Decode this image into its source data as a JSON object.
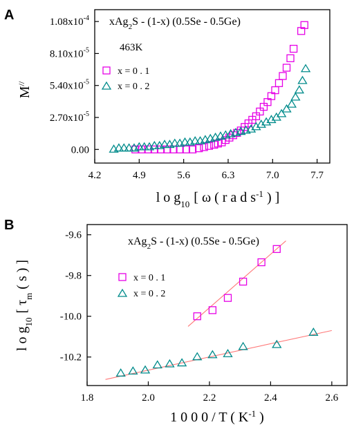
{
  "colors": {
    "x01": "#e600e6",
    "x02": "#008b8b",
    "fit": "#ff7777",
    "axis": "#000000"
  },
  "chart_data": [
    {
      "panel": "A",
      "type": "scatter",
      "title": "xAg2S - (1-x) (0.5Se - 0.5Ge)",
      "temperature_label": "463K",
      "xlabel_parts": {
        "main": "l o g",
        "sub": "10",
        "mid": "[ ω ( r a d  s",
        "sup": "-1",
        "end": ") ]"
      },
      "ylabel_parts": {
        "main": "M",
        "sup": "//"
      },
      "xlim": [
        4.2,
        7.9
      ],
      "ylim": [
        -1.15e-05,
        0.000118
      ],
      "xticks": [
        4.2,
        4.9,
        5.6,
        6.3,
        7.0,
        7.7
      ],
      "xtick_labels": [
        "4.2",
        "4.9",
        "5.6",
        "6.3",
        "7.0",
        "7.7"
      ],
      "yticks": [
        0,
        2.7e-05,
        5.4e-05,
        8.1e-05,
        0.000108
      ],
      "ytick_labels": [
        {
          "base": "0.00",
          "exp": ""
        },
        {
          "base": "2.70x10",
          "exp": "-5"
        },
        {
          "base": "5.40x10",
          "exp": "-5"
        },
        {
          "base": "8.10x10",
          "exp": "-5"
        },
        {
          "base": "1.08x10",
          "exp": "-4"
        }
      ],
      "legend": [
        "x = 0 . 1",
        "x = 0 . 2"
      ],
      "series": [
        {
          "name": "x = 0 . 1",
          "marker": "square",
          "color": "#e600e6",
          "points": [
            [
              4.84,
              0.0
            ],
            [
              4.94,
              0.0
            ],
            [
              5.04,
              0.0
            ],
            [
              5.14,
              0.0
            ],
            [
              5.24,
              0.0
            ],
            [
              5.34,
              0.0
            ],
            [
              5.44,
              0.0
            ],
            [
              5.54,
              0.0
            ],
            [
              5.64,
              0.0
            ],
            [
              5.74,
              0.0
            ],
            [
              5.84,
              1e-06
            ],
            [
              5.92,
              2e-06
            ],
            [
              6.0,
              3e-06
            ],
            [
              6.08,
              4e-06
            ],
            [
              6.14,
              5e-06
            ],
            [
              6.2,
              6e-06
            ],
            [
              6.26,
              8e-06
            ],
            [
              6.32,
              1e-05
            ],
            [
              6.38,
              1.2e-05
            ],
            [
              6.44,
              1.4e-05
            ],
            [
              6.5,
              1.6e-05
            ],
            [
              6.56,
              1.9e-05
            ],
            [
              6.62,
              2.2e-05
            ],
            [
              6.68,
              2.5e-05
            ],
            [
              6.74,
              2.8e-05
            ],
            [
              6.8,
              3.2e-05
            ],
            [
              6.86,
              3.6e-05
            ],
            [
              6.92,
              4e-05
            ],
            [
              6.98,
              4.5e-05
            ],
            [
              7.04,
              5e-05
            ],
            [
              7.1,
              5.6e-05
            ],
            [
              7.16,
              6.2e-05
            ],
            [
              7.22,
              6.9e-05
            ],
            [
              7.28,
              7.7e-05
            ],
            [
              7.33,
              8.5e-05
            ],
            [
              7.45,
              0.0001
            ],
            [
              7.5,
              0.000105
            ]
          ]
        },
        {
          "name": "x = 0 . 2",
          "marker": "triangle",
          "color": "#008b8b",
          "points": [
            [
              4.5,
              0.0
            ],
            [
              4.58,
              1e-06
            ],
            [
              4.66,
              1e-06
            ],
            [
              4.74,
              1e-06
            ],
            [
              4.82,
              1e-06
            ],
            [
              4.9,
              2e-06
            ],
            [
              4.98,
              2e-06
            ],
            [
              5.06,
              2e-06
            ],
            [
              5.14,
              3e-06
            ],
            [
              5.22,
              3e-06
            ],
            [
              5.3,
              4e-06
            ],
            [
              5.38,
              4e-06
            ],
            [
              5.46,
              5e-06
            ],
            [
              5.54,
              5e-06
            ],
            [
              5.62,
              6e-06
            ],
            [
              5.7,
              6e-06
            ],
            [
              5.78,
              7e-06
            ],
            [
              5.86,
              7e-06
            ],
            [
              5.94,
              8e-06
            ],
            [
              6.02,
              9e-06
            ],
            [
              6.1,
              1e-05
            ],
            [
              6.18,
              1.1e-05
            ],
            [
              6.26,
              1.2e-05
            ],
            [
              6.34,
              1.3e-05
            ],
            [
              6.42,
              1.4e-05
            ],
            [
              6.5,
              1.5e-05
            ],
            [
              6.58,
              1.6e-05
            ],
            [
              6.66,
              1.7e-05
            ],
            [
              6.74,
              1.9e-05
            ],
            [
              6.82,
              2.1e-05
            ],
            [
              6.9,
              2.3e-05
            ],
            [
              6.98,
              2.5e-05
            ],
            [
              7.06,
              2.7e-05
            ],
            [
              7.14,
              3e-05
            ],
            [
              7.22,
              3.4e-05
            ],
            [
              7.3,
              3.8e-05
            ],
            [
              7.36,
              4.4e-05
            ],
            [
              7.42,
              5e-05
            ],
            [
              7.47,
              5.8e-05
            ],
            [
              7.52,
              6.8e-05
            ]
          ]
        }
      ]
    },
    {
      "panel": "B",
      "type": "scatter",
      "title": "xAg2S - (1-x) (0.5Se - 0.5Ge)",
      "xlabel_parts": {
        "main": "1 0 0 0 / T ( K",
        "sup": "-1",
        "end": ")"
      },
      "ylabel_parts": {
        "main": "l o g",
        "sub": "10",
        "mid": "[ τ",
        "sub2": "m",
        "end": "( s ) ]"
      },
      "xlim": [
        1.8,
        2.65
      ],
      "ylim": [
        -10.34,
        -9.55
      ],
      "xticks": [
        1.8,
        2.0,
        2.2,
        2.4,
        2.6
      ],
      "xtick_labels": [
        "1.8",
        "2.0",
        "2.2",
        "2.4",
        "2.6"
      ],
      "yticks": [
        -10.2,
        -10.0,
        -9.8,
        -9.6
      ],
      "ytick_labels": [
        "-10.2",
        "-10.0",
        "-9.8",
        "-9.6"
      ],
      "legend": [
        "x = 0 . 1",
        "x = 0 . 2"
      ],
      "series": [
        {
          "name": "x = 0 . 1",
          "marker": "square",
          "color": "#e600e6",
          "points": [
            [
              2.16,
              -10.0
            ],
            [
              2.21,
              -9.97
            ],
            [
              2.26,
              -9.91
            ],
            [
              2.31,
              -9.83
            ],
            [
              2.37,
              -9.735
            ],
            [
              2.42,
              -9.67
            ]
          ],
          "fit": [
            [
              2.13,
              -10.05
            ],
            [
              2.45,
              -9.63
            ]
          ]
        },
        {
          "name": "x = 0 . 2",
          "marker": "triangle",
          "color": "#008b8b",
          "points": [
            [
              1.91,
              -10.28
            ],
            [
              1.95,
              -10.27
            ],
            [
              1.99,
              -10.265
            ],
            [
              2.03,
              -10.24
            ],
            [
              2.07,
              -10.235
            ],
            [
              2.11,
              -10.23
            ],
            [
              2.16,
              -10.2
            ],
            [
              2.21,
              -10.19
            ],
            [
              2.26,
              -10.185
            ],
            [
              2.31,
              -10.15
            ],
            [
              2.42,
              -10.14
            ],
            [
              2.54,
              -10.08
            ]
          ],
          "fit": [
            [
              1.86,
              -10.31
            ],
            [
              2.6,
              -10.07
            ]
          ]
        }
      ]
    }
  ]
}
